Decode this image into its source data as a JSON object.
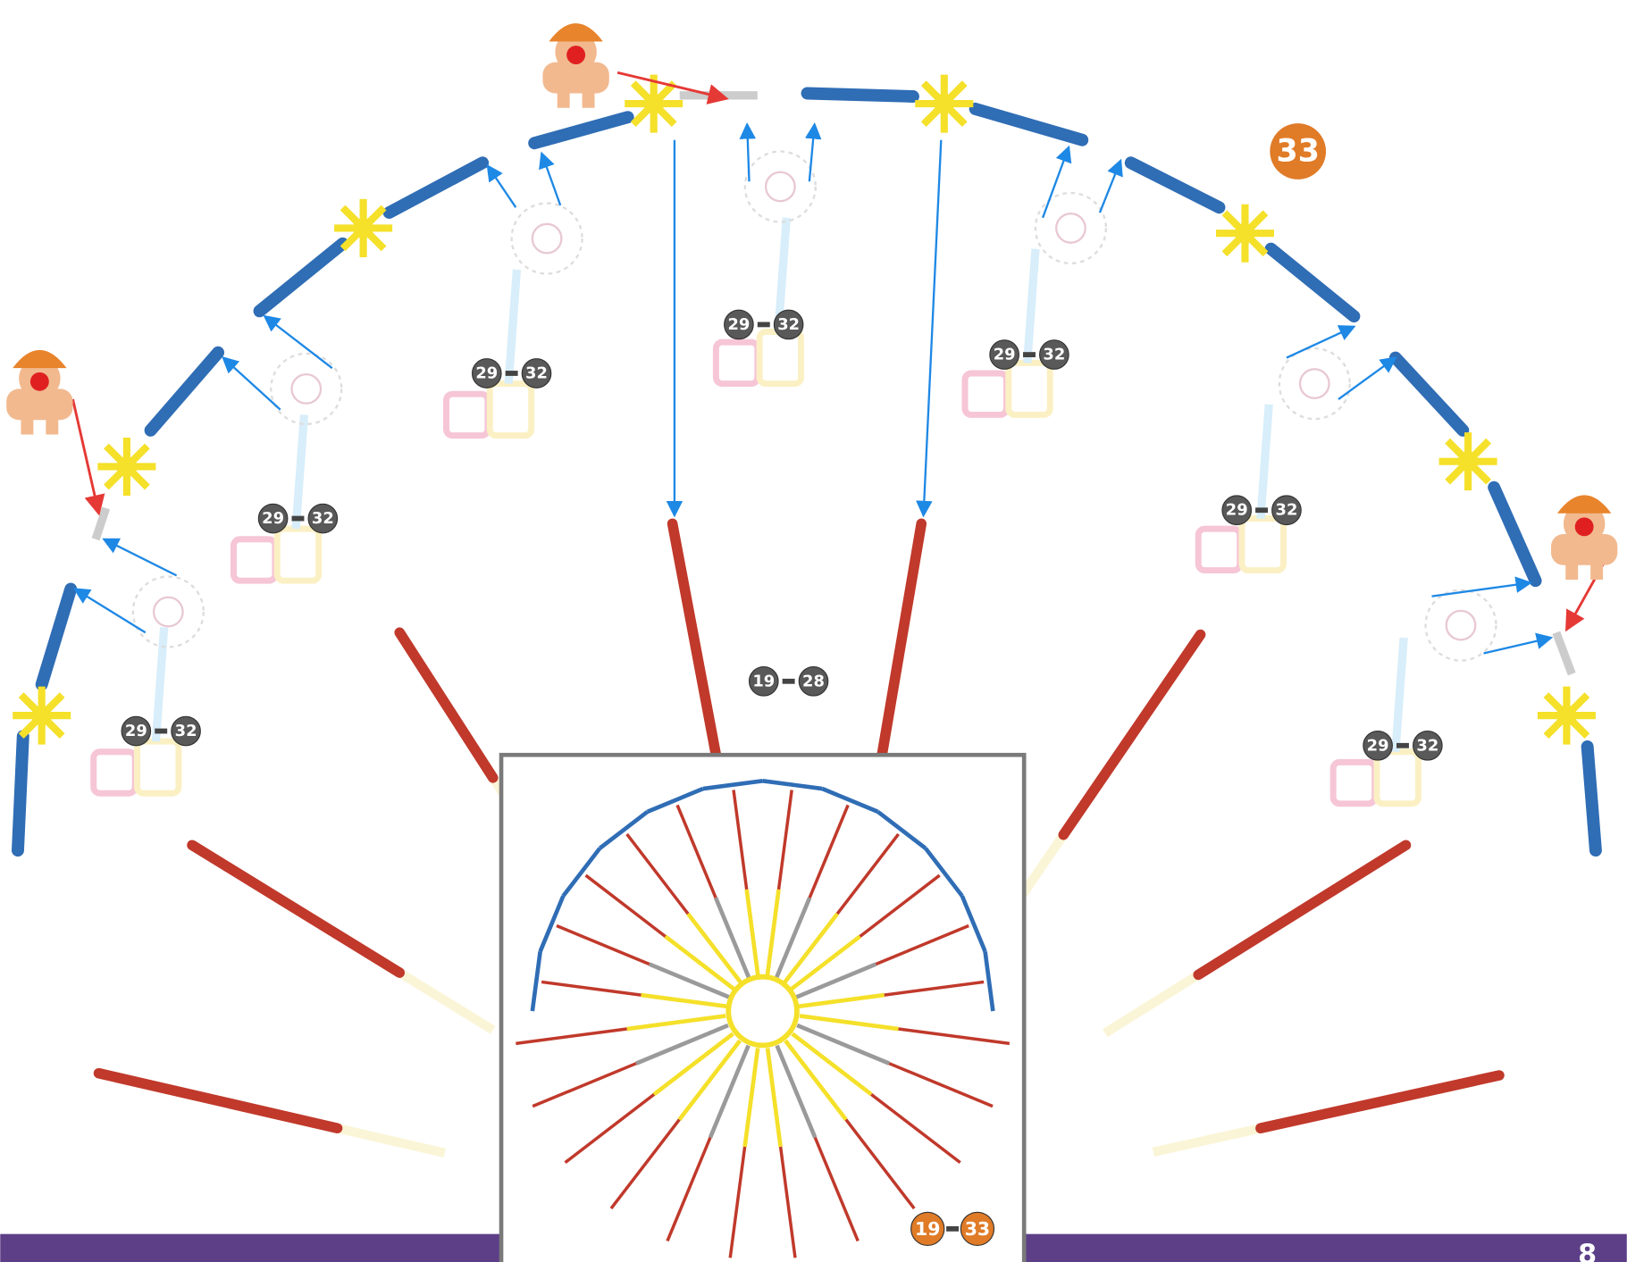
{
  "step": {
    "number": "33"
  },
  "substeps": [
    {
      "from": "29",
      "to": "32"
    },
    {
      "from": "29",
      "to": "32"
    },
    {
      "from": "29",
      "to": "32"
    },
    {
      "from": "29",
      "to": "32"
    },
    {
      "from": "29",
      "to": "32"
    },
    {
      "from": "29",
      "to": "32"
    },
    {
      "from": "29",
      "to": "32"
    }
  ],
  "main_ref": {
    "from": "19",
    "to": "28"
  },
  "inset_ref": {
    "from": "19",
    "to": "33"
  },
  "page_number": "8"
}
